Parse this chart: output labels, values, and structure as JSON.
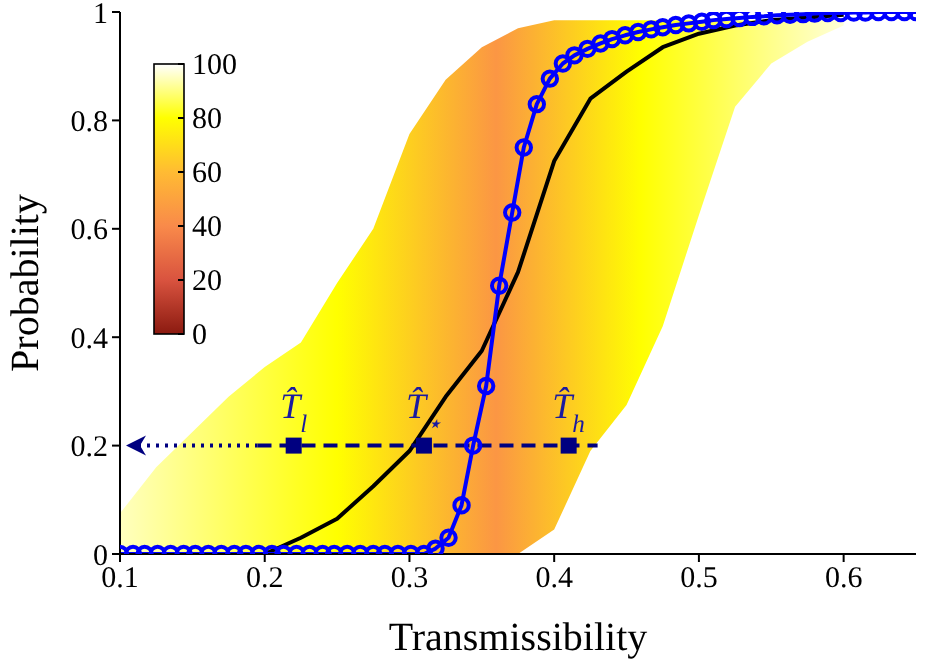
{
  "chart_data": {
    "type": "line",
    "xlabel": "Transmissibility",
    "ylabel": "Probability",
    "xlim": [
      0.1,
      0.65
    ],
    "xticks": [
      0.1,
      0.2,
      0.3,
      0.4,
      0.5,
      0.6
    ],
    "ylim": [
      0,
      1
    ],
    "yticks": [
      0,
      0.2,
      0.4,
      0.6,
      0.8,
      1
    ],
    "grid": false,
    "legend": false,
    "series": [
      {
        "color": "#000000",
        "marker": "none",
        "line_style": "solid",
        "x": [
          0.1,
          0.125,
          0.15,
          0.175,
          0.2,
          0.225,
          0.25,
          0.275,
          0.3,
          0.325,
          0.35,
          0.375,
          0.4,
          0.425,
          0.45,
          0.475,
          0.5,
          0.525,
          0.55,
          0.575,
          0.6
        ],
        "values": [
          null,
          null,
          null,
          null,
          0,
          0.03,
          0.065,
          0.125,
          0.19,
          0.29,
          0.375,
          0.52,
          0.725,
          0.84,
          0.89,
          0.935,
          0.96,
          0.975,
          0.985,
          0.99,
          0.995
        ],
        "lower": [
          0,
          0,
          0,
          0,
          0,
          0,
          0,
          0,
          0,
          0,
          0,
          0,
          0.045,
          0.19,
          0.275,
          0.42,
          0.625,
          0.825,
          0.905,
          0.945,
          0.975
        ],
        "upper": [
          0.075,
          0.16,
          0.225,
          0.29,
          0.345,
          0.39,
          0.5,
          0.6,
          0.775,
          0.875,
          0.935,
          0.97,
          0.985,
          0.985,
          0.985,
          0.985,
          0.985,
          0.985,
          0.985,
          0.985,
          0.985
        ]
      },
      {
        "color": "#0000ff",
        "marker": "circle",
        "line_style": "solid",
        "x": [
          0.1,
          0.109,
          0.117,
          0.126,
          0.135,
          0.144,
          0.152,
          0.161,
          0.17,
          0.179,
          0.187,
          0.196,
          0.205,
          0.213,
          0.222,
          0.231,
          0.24,
          0.248,
          0.257,
          0.266,
          0.275,
          0.283,
          0.292,
          0.301,
          0.31,
          0.318,
          0.327,
          0.336,
          0.344,
          0.353,
          0.362,
          0.371,
          0.379,
          0.388,
          0.397,
          0.406,
          0.414,
          0.423,
          0.432,
          0.44,
          0.449,
          0.458,
          0.467,
          0.475,
          0.484,
          0.493,
          0.502,
          0.51,
          0.519,
          0.528,
          0.537,
          0.545,
          0.554,
          0.563,
          0.572,
          0.58,
          0.589,
          0.598,
          0.607,
          0.615,
          0.624,
          0.633,
          0.642,
          0.65
        ],
        "values": [
          0,
          0,
          0,
          0,
          0,
          0,
          0,
          0,
          0,
          0,
          0,
          0,
          0,
          0,
          0,
          0,
          0,
          0,
          0,
          0,
          0,
          0,
          0,
          0,
          0,
          0.01,
          0.03,
          0.09,
          0.2,
          0.31,
          0.495,
          0.63,
          0.75,
          0.83,
          0.877,
          0.905,
          0.92,
          0.932,
          0.942,
          0.95,
          0.957,
          0.963,
          0.968,
          0.972,
          0.976,
          0.979,
          0.982,
          0.985,
          0.987,
          0.989,
          0.991,
          0.992,
          0.994,
          0.995,
          0.996,
          0.997,
          0.998,
          0.998,
          0.999,
          0.999,
          1,
          1,
          1,
          1
        ]
      },
      {
        "color": "#000080",
        "marker": "none",
        "line_style": "dashed",
        "x": [
          0.195,
          0.43
        ],
        "values": [
          0.2,
          0.2
        ]
      },
      {
        "type": "scatter",
        "color": "#000080",
        "marker": "square",
        "x": [
          0.22,
          0.31,
          0.41
        ],
        "values": [
          0.2,
          0.2,
          0.2
        ]
      }
    ],
    "annotations": [
      "100",
      "80",
      "60",
      "40",
      "20",
      "0",
      {
        "text": "T̂$_{l}$",
        "x": 0.22,
        "y": 0.2
      },
      {
        "text": "T̂$_{⋆}$",
        "x": 0.31,
        "y": 0.2
      },
      {
        "text": "T̂$_{h}$",
        "x": 0.41,
        "y": 0.2
      }
    ]
  }
}
